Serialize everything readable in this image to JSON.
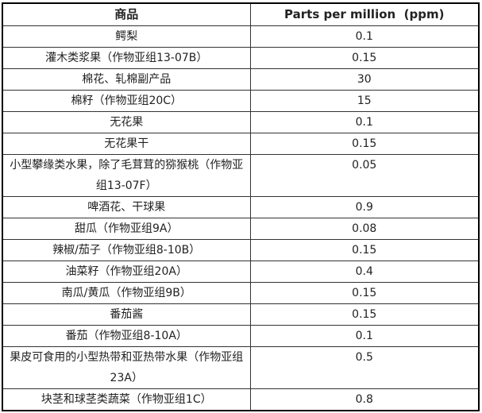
{
  "table": {
    "columns": [
      "商品",
      "Parts per million  (ppm)"
    ],
    "rows": [
      {
        "product": "鳄梨",
        "ppm": "0.1"
      },
      {
        "product": "灌木类浆果（作物亚组13-07B）",
        "ppm": "0.15"
      },
      {
        "product": "棉花、轧棉副产品",
        "ppm": "30"
      },
      {
        "product": "棉籽（作物亚组20C）",
        "ppm": "15"
      },
      {
        "product": "无花果",
        "ppm": "0.1"
      },
      {
        "product": "无花果干",
        "ppm": "0.15"
      },
      {
        "product": "小型攀缘类水果，除了毛茸茸的猕猴桃（作物亚组13-07F）",
        "ppm": "0.05"
      },
      {
        "product": "啤酒花、干球果",
        "ppm": "0.9"
      },
      {
        "product": "甜瓜（作物亚组9A）",
        "ppm": "0.08"
      },
      {
        "product": "辣椒/茄子（作物亚组8-10B）",
        "ppm": "0.15"
      },
      {
        "product": "油菜籽（作物亚组20A）",
        "ppm": "0.4"
      },
      {
        "product": "南瓜/黄瓜（作物亚组9B）",
        "ppm": "0.15"
      },
      {
        "product": "番茄酱",
        "ppm": "0.15"
      },
      {
        "product": "番茄（作物亚组8-10A）",
        "ppm": "0.1"
      },
      {
        "product": "果皮可食用的小型热带和亚热带水果（作物亚组23A）",
        "ppm": "0.5"
      },
      {
        "product": "块茎和球茎类蔬菜（作物亚组1C）",
        "ppm": "0.8"
      }
    ]
  },
  "colors": {
    "text": "#222222",
    "border_outer": "#000000",
    "border_inner": "#333333",
    "background": "#ffffff"
  },
  "chart_data": {
    "type": "table",
    "columns": [
      "商品",
      "Parts per million (ppm)"
    ],
    "rows": [
      [
        "鳄梨",
        0.1
      ],
      [
        "灌木类浆果（作物亚组13-07B）",
        0.15
      ],
      [
        "棉花、轧棉副产品",
        30
      ],
      [
        "棉籽（作物亚组20C）",
        15
      ],
      [
        "无花果",
        0.1
      ],
      [
        "无花果干",
        0.15
      ],
      [
        "小型攀缘类水果，除了毛茸茸的猕猴桃（作物亚组13-07F）",
        0.05
      ],
      [
        "啤酒花、干球果",
        0.9
      ],
      [
        "甜瓜（作物亚组9A）",
        0.08
      ],
      [
        "辣椒/茄子（作物亚组8-10B）",
        0.15
      ],
      [
        "油菜籽（作物亚组20A）",
        0.4
      ],
      [
        "南瓜/黄瓜（作物亚组9B）",
        0.15
      ],
      [
        "番茄酱",
        0.15
      ],
      [
        "番茄（作物亚组8-10A）",
        0.1
      ],
      [
        "果皮可食用的小型热带和亚热带水果（作物亚组23A）",
        0.5
      ],
      [
        "块茎和球茎类蔬菜（作物亚组1C）",
        0.8
      ]
    ]
  }
}
